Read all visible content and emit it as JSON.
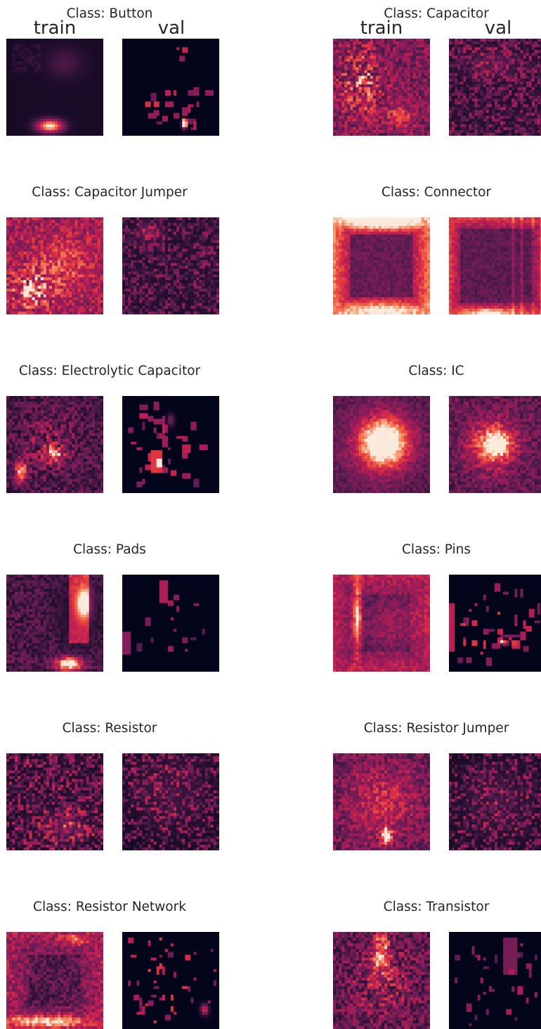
{
  "chart_data": {
    "type": "heatmap",
    "column_labels": [
      "train",
      "val"
    ],
    "colormap": "rocket (dark purple → red → cream)",
    "colors": {
      "low": "#03051a",
      "mid1": "#4c1d4b",
      "mid2": "#a11a5b",
      "mid3": "#e83f3f",
      "high": "#faebdd"
    },
    "panels": [
      {
        "title": "Class: Button",
        "train_pattern": "bright blob at lower center, faint boxes at top-left",
        "val_pattern": "sparse red rectangles concentrated bottom"
      },
      {
        "title": "Class: Capacitor",
        "train_pattern": "diffuse texture, bright upper-left",
        "val_pattern": "fine noisy texture"
      },
      {
        "title": "Class: Capacitor Jumper",
        "train_pattern": "bright dense texture, brightest lower-left",
        "val_pattern": "fine noisy texture"
      },
      {
        "title": "Class: Connector",
        "train_pattern": "bright frame edges, brightest top band",
        "val_pattern": "frame with vertical stripes"
      },
      {
        "title": "Class: Electrolytic Capacitor",
        "train_pattern": "patchy, bright spots lower-left",
        "val_pattern": "sparse boxes, bright center-left"
      },
      {
        "title": "Class: IC",
        "train_pattern": "bright central blob fading outward",
        "val_pattern": "blocky, bright center-right"
      },
      {
        "title": "Class: Pads",
        "train_pattern": "bright right column and bottom blob",
        "val_pattern": "sparse small boxes"
      },
      {
        "title": "Class: Pins",
        "train_pattern": "bright left vertical stripe, frame",
        "val_pattern": "sparse red rectangles, bright bottom"
      },
      {
        "title": "Class: Resistor",
        "train_pattern": "fine noisy texture",
        "val_pattern": "fine sparse texture"
      },
      {
        "title": "Class: Resistor Jumper",
        "train_pattern": "diffuse texture, bright lower-center",
        "val_pattern": "fine sparse texture"
      },
      {
        "title": "Class: Resistor Network",
        "train_pattern": "dim ring, bright bottom band",
        "val_pattern": "sparse bright small rectangles"
      },
      {
        "title": "Class: Transistor",
        "train_pattern": "patchy, bright upper-center",
        "val_pattern": "sparse boxes, vertical block top-right"
      }
    ]
  }
}
